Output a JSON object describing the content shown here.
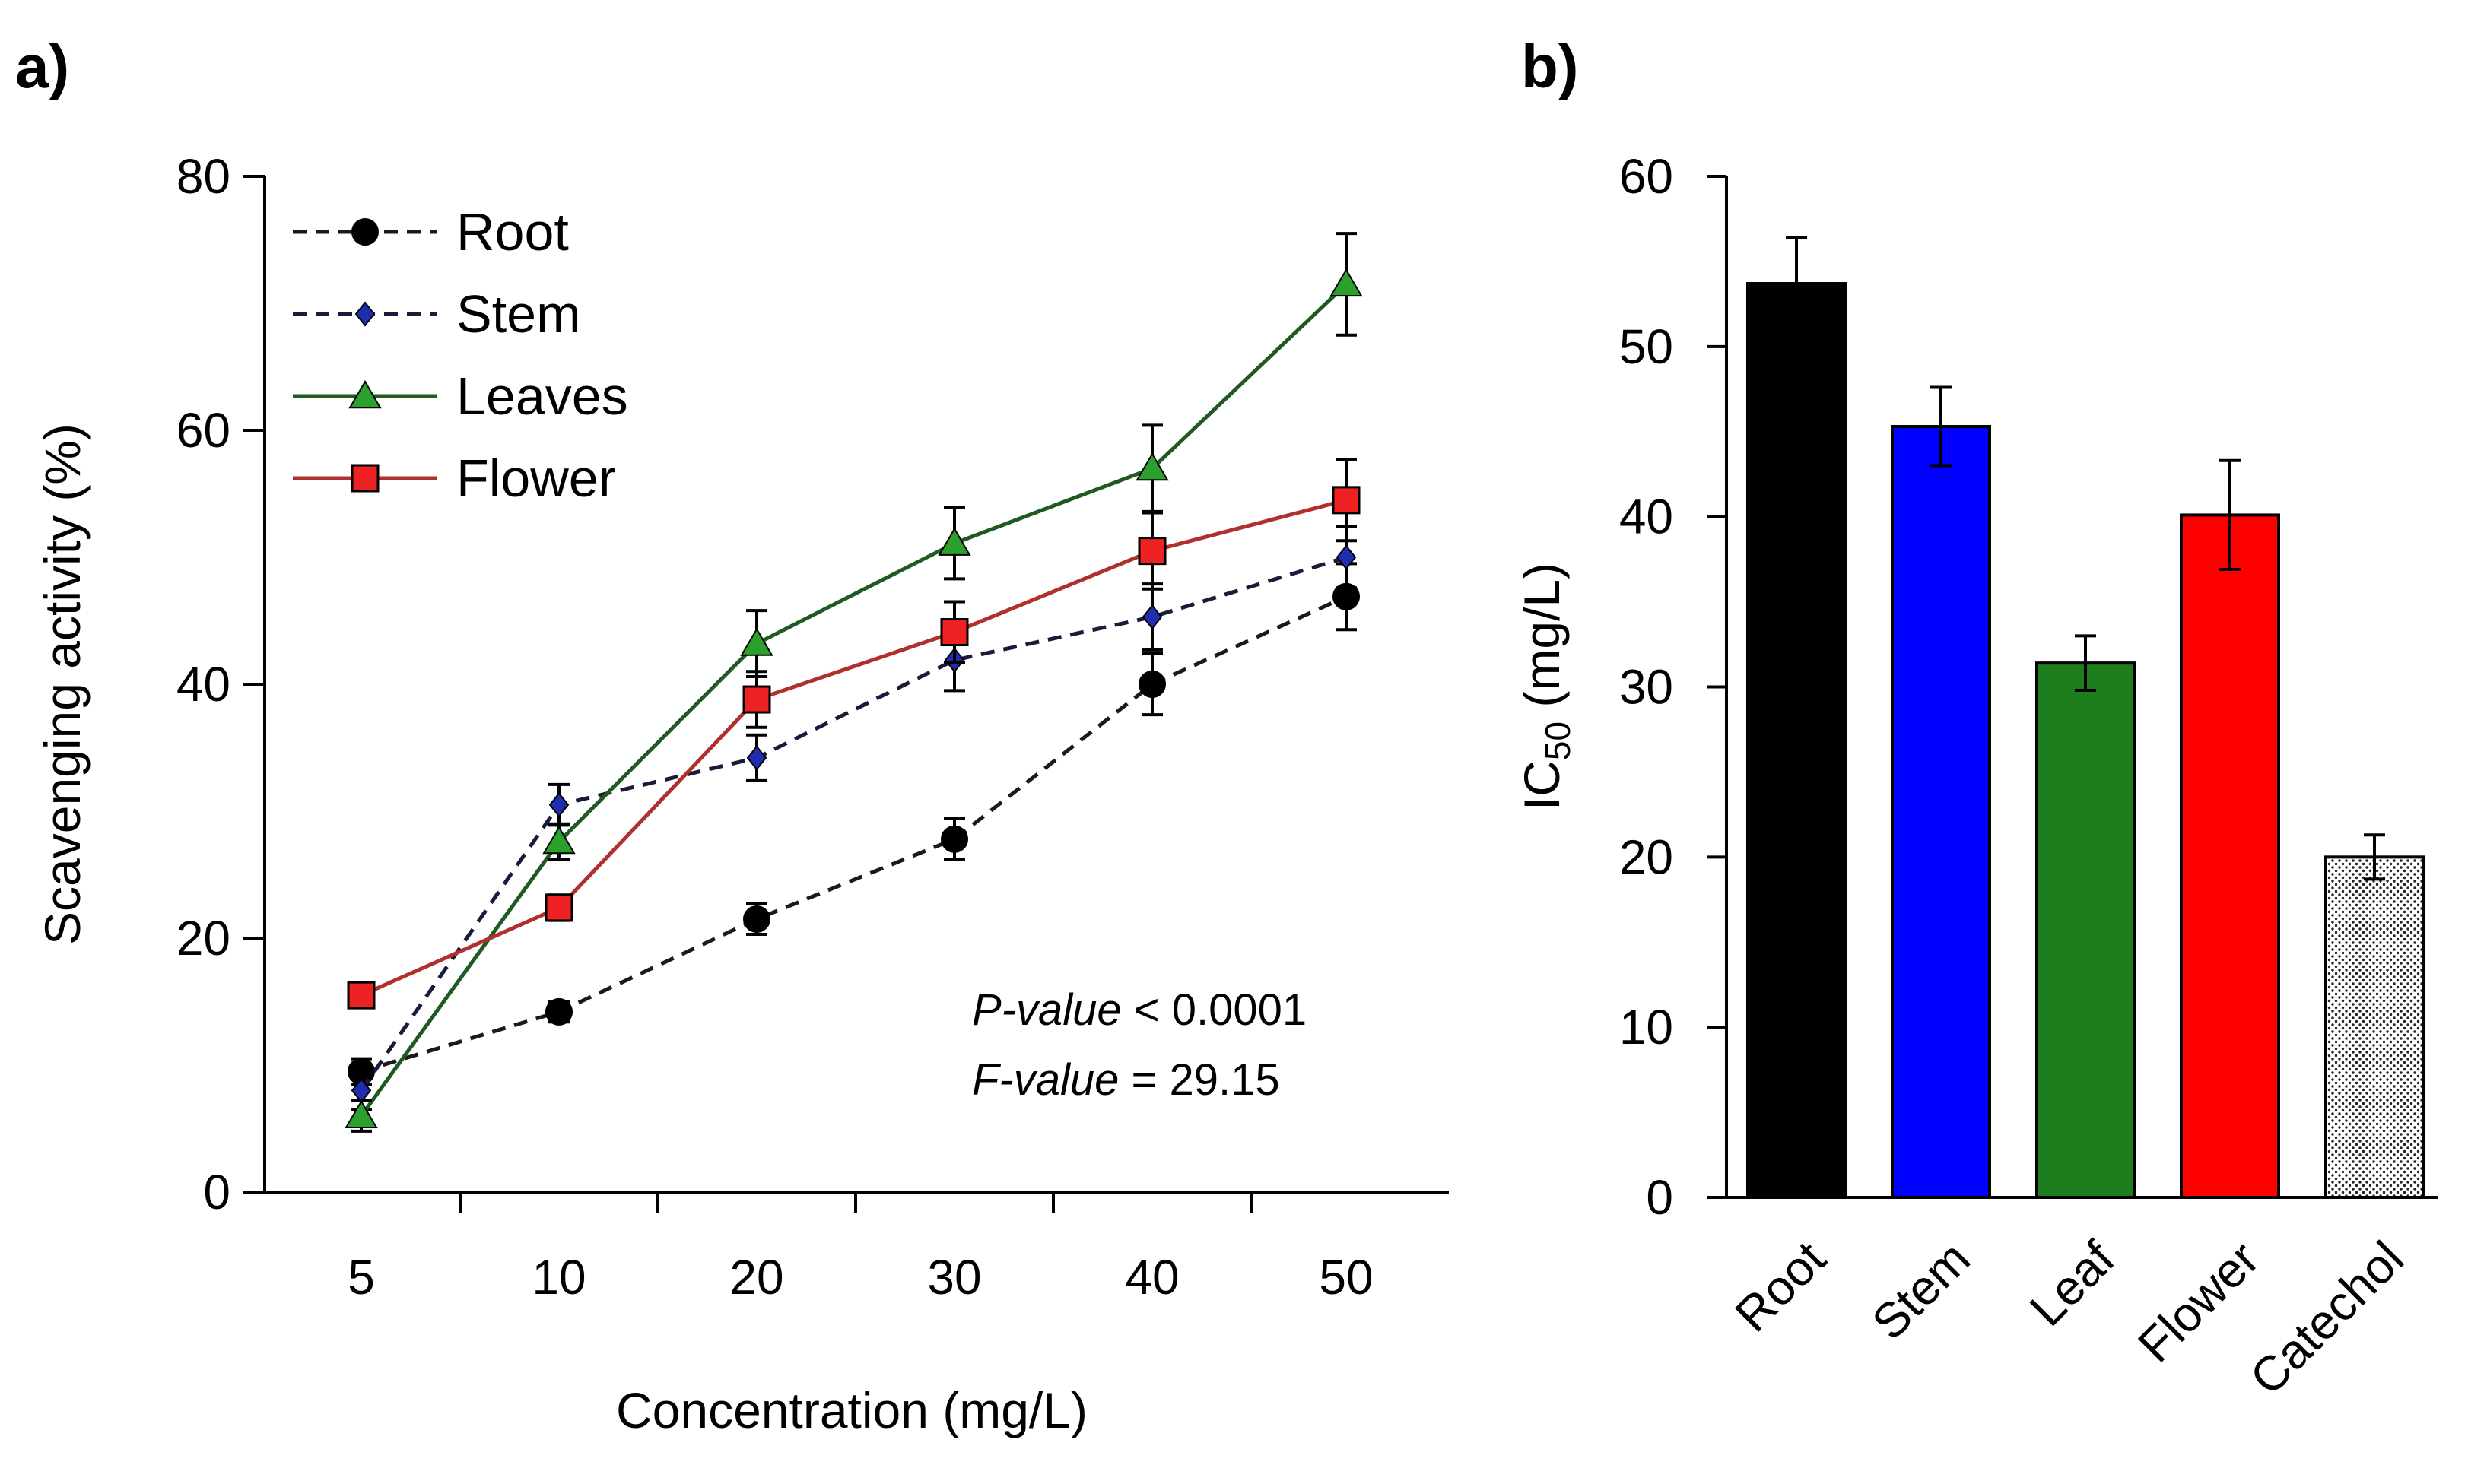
{
  "chart_data": [
    {
      "panel": "a)",
      "type": "line",
      "title": "",
      "xlabel": "Concentration (mg/L)",
      "ylabel": "Scavenging activity (%)",
      "categories": [
        "5",
        "10",
        "20",
        "30",
        "40",
        "50"
      ],
      "ylim": [
        0,
        80
      ],
      "yticks": [
        0,
        20,
        40,
        60,
        80
      ],
      "grid": false,
      "legend_position": "top-left",
      "series": [
        {
          "name": "Root",
          "marker": "circle",
          "dashed": true,
          "color": "#1a1a1a",
          "fill": "#000000",
          "values": [
            9.5,
            14.2,
            21.5,
            27.8,
            40.0,
            46.9
          ],
          "errors": [
            1.0,
            0.8,
            1.2,
            1.6,
            2.4,
            2.6
          ]
        },
        {
          "name": "Stem",
          "marker": "diamond",
          "dashed": true,
          "color": "#1a1a3a",
          "fill": "#1f2eb0",
          "values": [
            8.0,
            30.5,
            34.2,
            41.9,
            45.3,
            50.0
          ],
          "errors": [
            1.5,
            1.6,
            1.8,
            2.4,
            2.6,
            2.4
          ]
        },
        {
          "name": "Leaves",
          "marker": "triangle",
          "dashed": false,
          "color": "#1f5a23",
          "fill": "#2ca02c",
          "values": [
            6.0,
            27.6,
            43.2,
            51.1,
            57.0,
            71.5
          ],
          "errors": [
            1.2,
            1.4,
            2.6,
            2.8,
            3.4,
            4.0
          ]
        },
        {
          "name": "Flower",
          "marker": "square",
          "dashed": false,
          "color": "#b0302e",
          "fill": "#ee2222",
          "values": [
            15.5,
            22.4,
            38.8,
            44.1,
            50.5,
            54.5
          ],
          "errors": [
            0.8,
            1.0,
            2.2,
            2.4,
            3.0,
            3.2
          ]
        }
      ],
      "annotations": [
        {
          "label": "P-value",
          "text": " < 0.0001"
        },
        {
          "label": "F-value",
          "text": " = 29.15"
        }
      ]
    },
    {
      "panel": "b)",
      "type": "bar",
      "title": "",
      "xlabel": "",
      "ylabel_main": "IC",
      "ylabel_sub": "50",
      "ylabel_unit": " (mg/L)",
      "categories": [
        "Root",
        "Stem",
        "Leaf",
        "Flower",
        "Catechol"
      ],
      "values": [
        53.7,
        45.3,
        31.4,
        40.1,
        20.0
      ],
      "errors": [
        2.7,
        2.3,
        1.6,
        3.2,
        1.3
      ],
      "colors": [
        "#000000",
        "#0000ff",
        "#1e7e1e",
        "#ff0000",
        "pattern:dots"
      ],
      "ylim": [
        0,
        60
      ],
      "yticks": [
        0,
        10,
        20,
        30,
        40,
        50,
        60
      ],
      "grid": false
    }
  ]
}
